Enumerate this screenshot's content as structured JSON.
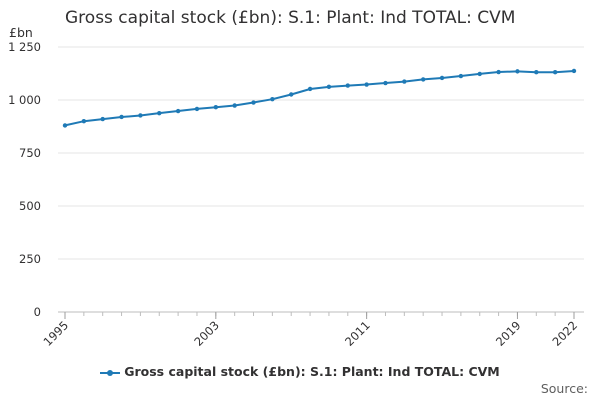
{
  "chart_data": {
    "type": "line",
    "title": "Gross capital stock (£bn): S.1: Plant: Ind TOTAL: CVM",
    "ylabel": "£bn",
    "xlabel": "",
    "ylim": [
      0,
      1250
    ],
    "y_ticks": [
      0,
      250,
      500,
      750,
      1000,
      1250
    ],
    "y_tick_labels": [
      "0",
      "250",
      "500",
      "750",
      "1 000",
      "1 250"
    ],
    "x_ticks": [
      1995,
      2003,
      2011,
      2019,
      2022
    ],
    "grid": true,
    "legend_position": "bottom",
    "x": [
      1995,
      1996,
      1997,
      1998,
      1999,
      2000,
      2001,
      2002,
      2003,
      2004,
      2005,
      2006,
      2007,
      2008,
      2009,
      2010,
      2011,
      2012,
      2013,
      2014,
      2015,
      2016,
      2017,
      2018,
      2019,
      2020,
      2021,
      2022
    ],
    "series": [
      {
        "name": "Gross capital stock (£bn): S.1: Plant: Ind TOTAL: CVM",
        "color": "#1f7ab6",
        "values": [
          880,
          900,
          910,
          920,
          927,
          938,
          948,
          958,
          966,
          974,
          988,
          1004,
          1026,
          1052,
          1062,
          1068,
          1073,
          1080,
          1087,
          1097,
          1104,
          1113,
          1123,
          1132,
          1135,
          1131,
          1131,
          1137
        ]
      }
    ]
  },
  "source": "Source:"
}
